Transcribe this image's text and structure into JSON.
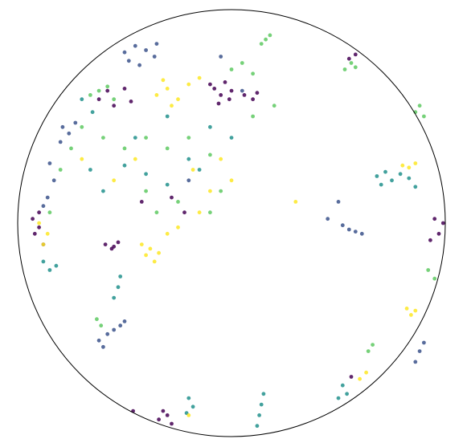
{
  "chart_data": {
    "type": "scatter",
    "title": "",
    "xlabel": "",
    "ylabel": "",
    "grid": false,
    "legend": "none",
    "xlim": [
      -1,
      1
    ],
    "ylim": [
      -1,
      1
    ],
    "boundary": "unit-circle",
    "palette": [
      "#440154",
      "#3b528b",
      "#21918c",
      "#5ec962",
      "#fde725"
    ],
    "series": [
      {
        "values": [
          [
            -0.62,
            0.58
          ],
          [
            -0.58,
            0.62
          ],
          [
            -0.55,
            0.55
          ],
          [
            -0.5,
            0.63
          ],
          [
            -0.47,
            0.57
          ],
          [
            -0.92,
            -0.05
          ],
          [
            -0.9,
            0.05
          ],
          [
            -0.88,
            -0.1
          ],
          [
            -0.9,
            -0.02
          ],
          [
            -0.93,
            0.02
          ],
          [
            -0.59,
            -0.1
          ],
          [
            -0.56,
            -0.12
          ],
          [
            -0.53,
            -0.09
          ],
          [
            -0.55,
            -0.11
          ],
          [
            -0.08,
            0.63
          ],
          [
            -0.05,
            0.6
          ],
          [
            -0.03,
            0.66
          ],
          [
            0.0,
            0.62
          ],
          [
            -0.06,
            0.56
          ],
          [
            -0.01,
            0.58
          ],
          [
            -0.1,
            0.65
          ],
          [
            0.06,
            0.6
          ],
          [
            0.1,
            0.58
          ],
          [
            0.12,
            0.61
          ],
          [
            0.55,
            0.77
          ],
          [
            0.58,
            0.79
          ],
          [
            0.97,
            -0.05
          ],
          [
            0.95,
            0.02
          ],
          [
            0.93,
            -0.08
          ],
          [
            0.99,
            0.0
          ],
          [
            -0.34,
            -0.92
          ],
          [
            -0.32,
            -0.88
          ],
          [
            -0.3,
            -0.9
          ],
          [
            -0.28,
            -0.94
          ],
          [
            -0.46,
            -0.88
          ],
          [
            0.56,
            -0.72
          ],
          [
            -0.28,
            0.12
          ],
          [
            -0.42,
            0.1
          ],
          [
            -0.22,
            0.05
          ]
        ]
      },
      {
        "values": [
          [
            -0.5,
            0.8
          ],
          [
            -0.45,
            0.83
          ],
          [
            -0.4,
            0.81
          ],
          [
            -0.36,
            0.78
          ],
          [
            -0.48,
            0.76
          ],
          [
            -0.43,
            0.74
          ],
          [
            -0.35,
            0.84
          ],
          [
            -0.79,
            0.45
          ],
          [
            -0.76,
            0.42
          ],
          [
            -0.73,
            0.47
          ],
          [
            -0.8,
            0.38
          ],
          [
            -0.85,
            0.28
          ],
          [
            -0.83,
            0.2
          ],
          [
            -0.88,
            0.08
          ],
          [
            -0.86,
            0.12
          ],
          [
            0.55,
            -0.03
          ],
          [
            0.58,
            -0.04
          ],
          [
            0.61,
            -0.05
          ],
          [
            0.52,
            -0.01
          ],
          [
            0.45,
            0.02
          ],
          [
            0.5,
            0.1
          ],
          [
            -0.58,
            -0.52
          ],
          [
            -0.62,
            -0.55
          ],
          [
            -0.55,
            -0.5
          ],
          [
            -0.52,
            -0.48
          ],
          [
            -0.6,
            -0.58
          ],
          [
            -0.5,
            -0.46
          ],
          [
            0.88,
            -0.6
          ],
          [
            0.86,
            -0.65
          ],
          [
            0.9,
            -0.56
          ],
          [
            -0.2,
            0.2
          ],
          [
            -0.05,
            0.78
          ],
          [
            0.05,
            0.62
          ]
        ]
      },
      {
        "values": [
          [
            0.68,
            0.22
          ],
          [
            0.72,
            0.24
          ],
          [
            0.75,
            0.2
          ],
          [
            0.79,
            0.23
          ],
          [
            0.83,
            0.21
          ],
          [
            0.86,
            0.17
          ],
          [
            0.7,
            0.18
          ],
          [
            -0.88,
            -0.18
          ],
          [
            -0.85,
            -0.22
          ],
          [
            -0.82,
            -0.2
          ],
          [
            -0.66,
            0.25
          ],
          [
            -0.6,
            0.15
          ],
          [
            -0.5,
            0.27
          ],
          [
            -0.4,
            0.23
          ],
          [
            -0.3,
            0.18
          ],
          [
            -0.2,
            0.3
          ],
          [
            -0.15,
            0.25
          ],
          [
            -0.7,
            0.58
          ],
          [
            -0.65,
            0.52
          ],
          [
            -0.2,
            -0.82
          ],
          [
            -0.18,
            -0.86
          ],
          [
            -0.21,
            -0.89
          ],
          [
            0.14,
            -0.85
          ],
          [
            0.13,
            -0.9
          ],
          [
            0.12,
            -0.95
          ],
          [
            0.15,
            -0.8
          ],
          [
            0.52,
            -0.76
          ],
          [
            0.54,
            -0.8
          ],
          [
            0.5,
            -0.82
          ],
          [
            -0.53,
            -0.3
          ],
          [
            -0.55,
            -0.35
          ],
          [
            -0.52,
            -0.25
          ],
          [
            -0.3,
            0.5
          ],
          [
            -0.1,
            0.45
          ],
          [
            0.0,
            0.4
          ],
          [
            -0.45,
            0.4
          ]
        ]
      },
      {
        "values": [
          [
            -0.62,
            0.62
          ],
          [
            -0.58,
            0.64
          ],
          [
            -0.55,
            0.58
          ],
          [
            -0.66,
            0.6
          ],
          [
            -0.7,
            0.45
          ],
          [
            -0.75,
            0.35
          ],
          [
            -0.8,
            0.25
          ],
          [
            -0.6,
            0.4
          ],
          [
            -0.5,
            0.35
          ],
          [
            -0.4,
            0.4
          ],
          [
            -0.3,
            0.35
          ],
          [
            -0.2,
            0.4
          ],
          [
            -0.1,
            0.32
          ],
          [
            0.0,
            0.72
          ],
          [
            0.05,
            0.75
          ],
          [
            0.1,
            0.7
          ],
          [
            0.14,
            0.84
          ],
          [
            0.16,
            0.86
          ],
          [
            0.18,
            0.88
          ],
          [
            0.53,
            0.72
          ],
          [
            0.56,
            0.75
          ],
          [
            0.58,
            0.73
          ],
          [
            0.86,
            0.52
          ],
          [
            0.88,
            0.55
          ],
          [
            0.9,
            0.5
          ],
          [
            0.92,
            -0.22
          ],
          [
            0.95,
            -0.26
          ],
          [
            -0.63,
            -0.45
          ],
          [
            -0.61,
            -0.48
          ],
          [
            0.66,
            -0.57
          ],
          [
            0.64,
            -0.6
          ],
          [
            -0.4,
            0.15
          ],
          [
            -0.35,
            0.05
          ],
          [
            -0.25,
            0.1
          ],
          [
            -0.1,
            0.05
          ],
          [
            -0.05,
            0.15
          ],
          [
            0.1,
            0.5
          ],
          [
            0.2,
            0.55
          ],
          [
            -0.85,
            0.05
          ]
        ]
      },
      {
        "values": [
          [
            -0.35,
            0.6
          ],
          [
            -0.3,
            0.63
          ],
          [
            -0.25,
            0.58
          ],
          [
            -0.28,
            0.55
          ],
          [
            -0.32,
            0.67
          ],
          [
            -0.2,
            0.65
          ],
          [
            -0.15,
            0.68
          ],
          [
            -0.38,
            -0.12
          ],
          [
            -0.4,
            -0.15
          ],
          [
            -0.36,
            -0.18
          ],
          [
            -0.34,
            -0.14
          ],
          [
            -0.42,
            -0.1
          ],
          [
            -0.18,
            0.25
          ],
          [
            -0.1,
            0.15
          ],
          [
            -0.05,
            0.3
          ],
          [
            0.0,
            0.2
          ],
          [
            -0.15,
            0.05
          ],
          [
            -0.3,
            -0.05
          ],
          [
            -0.25,
            -0.02
          ],
          [
            0.83,
            0.26
          ],
          [
            0.86,
            0.28
          ],
          [
            0.8,
            0.27
          ],
          [
            0.82,
            -0.4
          ],
          [
            0.84,
            -0.43
          ],
          [
            0.86,
            -0.41
          ],
          [
            0.6,
            -0.73
          ],
          [
            0.63,
            -0.7
          ],
          [
            -0.2,
            -0.9
          ],
          [
            -0.88,
            -0.1
          ],
          [
            -0.86,
            -0.05
          ],
          [
            -0.9,
            0.0
          ],
          [
            -0.7,
            0.3
          ],
          [
            -0.55,
            0.2
          ],
          [
            -0.45,
            0.3
          ],
          [
            0.3,
            0.1
          ]
        ]
      }
    ]
  }
}
